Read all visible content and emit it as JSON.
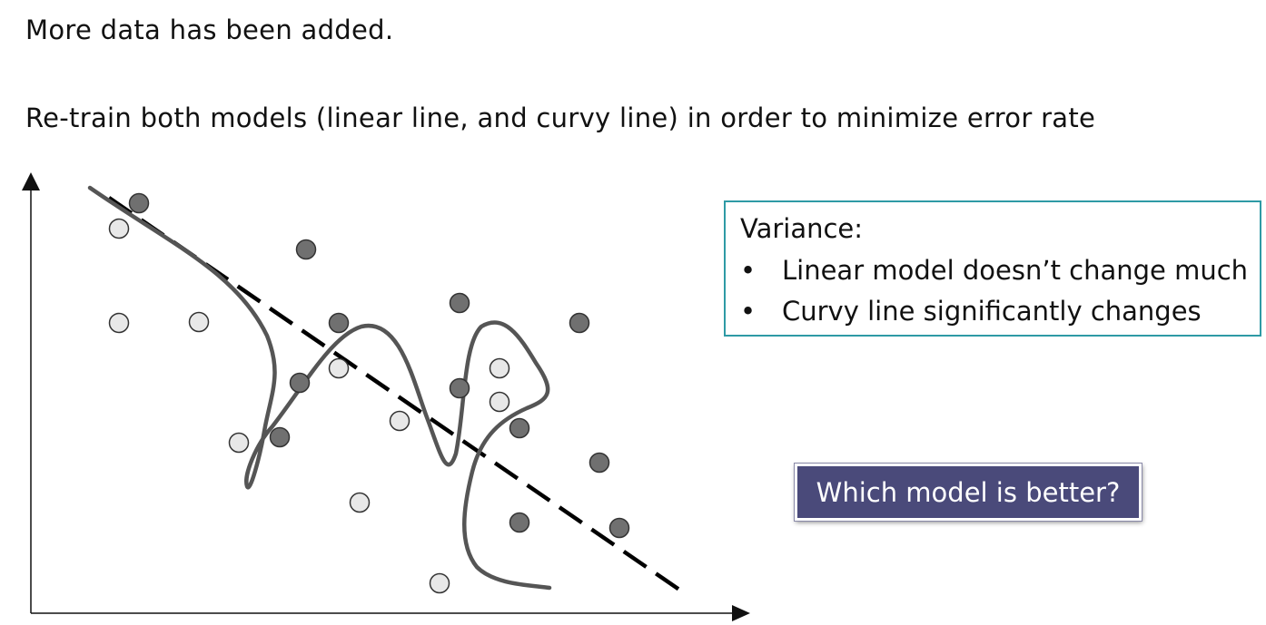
{
  "heading": {
    "line1": "More data has been added.",
    "line2": "Re-train both models (linear line, and curvy line) in order to minimize error rate"
  },
  "variance_box": {
    "title": "Variance:",
    "bullets": [
      "Linear model doesn’t change much",
      "Curvy line significantly changes"
    ]
  },
  "question_box": {
    "label": "Which model is better?"
  },
  "colors": {
    "dark_point": "#707070",
    "light_point": "#e8e8e8",
    "point_stroke": "#333333",
    "linear_line": "#000000",
    "curvy_line": "#555555",
    "variance_border": "#2e9aa5",
    "question_bg": "#4a4a7a"
  }
}
